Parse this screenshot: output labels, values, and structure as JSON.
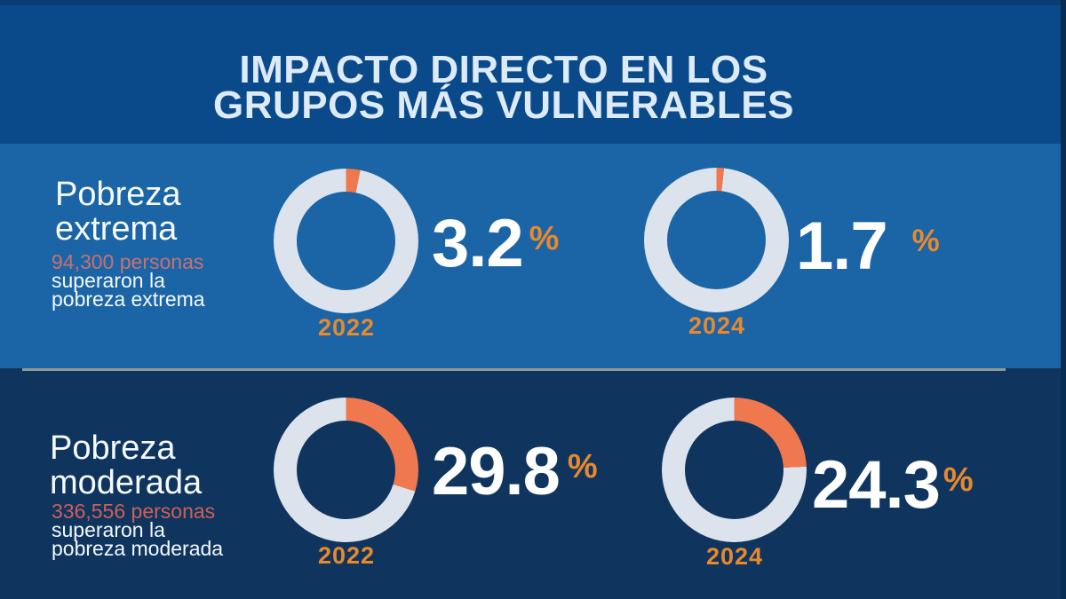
{
  "title": {
    "line1": "IMPACTO DIRECTO EN LOS",
    "line2": "GRUPOS MÁS VULNERABLES"
  },
  "sections": [
    {
      "id": "pobreza-extrema",
      "heading_line1": "Pobreza",
      "heading_line2": "extrema",
      "highlight": "94,300 personas",
      "subtext_line1": "superaron la",
      "subtext_line2": "pobreza extrema",
      "donuts": [
        {
          "year": "2022",
          "value": 3.2,
          "value_label": "3.2",
          "percent_symbol": "%"
        },
        {
          "year": "2024",
          "value": 1.7,
          "value_label": "1.7",
          "percent_symbol": "%"
        }
      ]
    },
    {
      "id": "pobreza-moderada",
      "heading_line1": "Pobreza",
      "heading_line2": "moderada",
      "highlight": "336,556 personas",
      "subtext_line1": "superaron la",
      "subtext_line2": "pobreza moderada",
      "donuts": [
        {
          "year": "2022",
          "value": 29.8,
          "value_label": "29.8",
          "percent_symbol": "%"
        },
        {
          "year": "2024",
          "value": 24.3,
          "value_label": "24.3",
          "percent_symbol": "%"
        }
      ]
    }
  ],
  "colors": {
    "title_band_bg": "#0a4a8a",
    "extrema_band_bg": "#1b65a6",
    "moderada_band_bg": "#0f355f",
    "divider_line": "#8e9a92",
    "ring_light": "#dce3ec",
    "arc_orange": "#f0784e",
    "accent_orange": "#e8892c",
    "highlight_extrema": "#c77173",
    "highlight_moderada": "#ce5f58",
    "title_text": "#ddeaf8",
    "body_text": "#f6fafd",
    "edge_dark": "#0a2c50"
  },
  "chart_data": [
    {
      "type": "pie",
      "title": "Pobreza extrema",
      "annotation": "94,300 personas superaron la pobreza extrema",
      "categories": [
        "2022",
        "2024"
      ],
      "values": [
        3.2,
        1.7
      ],
      "unit": "%",
      "legend_position": "below-donut"
    },
    {
      "type": "pie",
      "title": "Pobreza moderada",
      "annotation": "336,556 personas superaron la pobreza moderada",
      "categories": [
        "2022",
        "2024"
      ],
      "values": [
        29.8,
        24.3
      ],
      "unit": "%",
      "legend_position": "below-donut"
    }
  ]
}
